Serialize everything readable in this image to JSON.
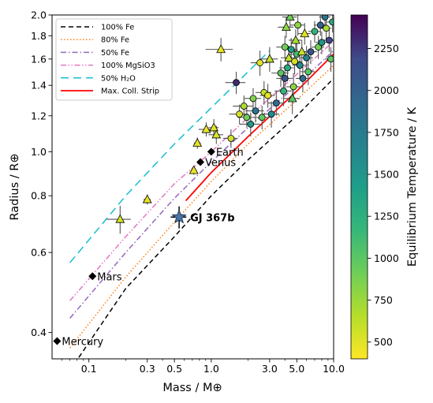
{
  "chart_data": {
    "type": "scatter",
    "xlabel": "Mass / M⊕",
    "ylabel": "Radius / R⊕",
    "xscale": "log",
    "yscale": "log",
    "xlim": [
      0.05,
      10.0
    ],
    "ylim": [
      0.35,
      2.0
    ],
    "x_ticks": [
      0.1,
      0.3,
      0.5,
      1.0,
      3.0,
      5.0,
      10.0
    ],
    "x_tick_labels": [
      "0.1",
      "0.3",
      "0.5",
      "1.0",
      "3.0",
      "5.0",
      "10.0"
    ],
    "y_ticks": [
      0.4,
      0.6,
      0.8,
      1.0,
      1.2,
      1.4,
      1.6,
      1.8,
      2.0
    ],
    "y_tick_labels": [
      "0.4",
      "0.6",
      "0.8",
      "1.0",
      "1.2",
      "1.4",
      "1.6",
      "1.8",
      "2.0"
    ],
    "grid": false,
    "legend_position": "top-left",
    "colorbar": {
      "label": "Equilibrium Temperature / K",
      "min": 400,
      "max": 2450,
      "ticks": [
        500,
        750,
        1000,
        1250,
        1500,
        1750,
        2000,
        2250
      ],
      "tick_labels": [
        "500",
        "750",
        "1000",
        "1250",
        "1500",
        "1750",
        "2000",
        "2250"
      ],
      "colormap": "viridis-reversed"
    },
    "series": [
      {
        "name": "100% Fe",
        "style": "dashed",
        "color": "#000000",
        "x": [
          0.07,
          0.2,
          0.5,
          1.0,
          2.0,
          5.0,
          10.0
        ],
        "y": [
          0.33,
          0.5,
          0.65,
          0.8,
          0.96,
          1.2,
          1.45
        ]
      },
      {
        "name": "80% Fe",
        "style": "dotted",
        "color": "#ff7f0e",
        "x": [
          0.07,
          0.2,
          0.5,
          1.0,
          2.0,
          5.0,
          10.0
        ],
        "y": [
          0.37,
          0.53,
          0.7,
          0.86,
          1.04,
          1.3,
          1.55
        ]
      },
      {
        "name": "50% Fe",
        "style": "dashdot",
        "color": "#9467bd",
        "x": [
          0.07,
          0.2,
          0.5,
          1.0,
          2.0,
          5.0,
          10.0
        ],
        "y": [
          0.43,
          0.6,
          0.79,
          0.95,
          1.13,
          1.4,
          1.67
        ]
      },
      {
        "name": "100% MgSiO3",
        "style": "dashdotdot",
        "color": "#e377c2",
        "x": [
          0.07,
          0.2,
          0.5,
          1.0,
          2.0,
          5.0,
          10.0
        ],
        "y": [
          0.47,
          0.65,
          0.85,
          1.0,
          1.19,
          1.48,
          1.75
        ]
      },
      {
        "name": "50% H₂O",
        "style": "longdash",
        "color": "#17becf",
        "x": [
          0.07,
          0.2,
          0.5,
          1.0,
          2.0,
          3.0
        ],
        "y": [
          0.57,
          0.8,
          1.04,
          1.25,
          1.5,
          1.67
        ]
      },
      {
        "name": "Max. Coll. Strip",
        "style": "solid",
        "color": "#ff0000",
        "x": [
          0.62,
          1.0,
          2.0,
          5.0,
          10.0
        ],
        "y": [
          0.78,
          0.9,
          1.08,
          1.36,
          1.64
        ]
      }
    ],
    "scatter_points": [
      {
        "x": 0.18,
        "y": 0.71,
        "xerr": 0.04,
        "yerr": 0.05,
        "teq": 550,
        "marker": "triangle"
      },
      {
        "x": 0.3,
        "y": 0.785,
        "xerr": 0.02,
        "yerr": 0.02,
        "teq": 480,
        "marker": "triangle"
      },
      {
        "x": 0.72,
        "y": 0.91,
        "xerr": 0.04,
        "yerr": 0.02,
        "teq": 480,
        "marker": "triangle"
      },
      {
        "x": 0.77,
        "y": 1.045,
        "xerr": 0.05,
        "yerr": 0.03,
        "teq": 500,
        "marker": "triangle"
      },
      {
        "x": 0.91,
        "y": 1.12,
        "xerr": 0.12,
        "yerr": 0.04,
        "teq": 470,
        "marker": "triangle"
      },
      {
        "x": 1.05,
        "y": 1.13,
        "xerr": 0.1,
        "yerr": 0.05,
        "teq": 500,
        "marker": "triangle"
      },
      {
        "x": 1.1,
        "y": 1.09,
        "xerr": 0.15,
        "yerr": 0.05,
        "teq": 520,
        "marker": "triangle"
      },
      {
        "x": 1.2,
        "y": 1.68,
        "xerr": 0.3,
        "yerr": 0.1,
        "teq": 480,
        "marker": "triangle"
      },
      {
        "x": 1.45,
        "y": 1.07,
        "xerr": 0.2,
        "yerr": 0.05,
        "teq": 560,
        "marker": "circle"
      },
      {
        "x": 1.6,
        "y": 1.42,
        "xerr": 0.3,
        "yerr": 0.08,
        "teq": 2300,
        "marker": "circle"
      },
      {
        "x": 1.7,
        "y": 1.21,
        "xerr": 0.3,
        "yerr": 0.06,
        "teq": 550,
        "marker": "circle"
      },
      {
        "x": 1.85,
        "y": 1.26,
        "xerr": 0.35,
        "yerr": 0.07,
        "teq": 700,
        "marker": "circle"
      },
      {
        "x": 1.95,
        "y": 1.19,
        "xerr": 0.3,
        "yerr": 0.06,
        "teq": 900,
        "marker": "circle"
      },
      {
        "x": 2.1,
        "y": 1.15,
        "xerr": 0.4,
        "yerr": 0.07,
        "teq": 1500,
        "marker": "circle"
      },
      {
        "x": 2.2,
        "y": 1.31,
        "xerr": 0.35,
        "yerr": 0.07,
        "teq": 850,
        "marker": "circle"
      },
      {
        "x": 2.3,
        "y": 1.23,
        "xerr": 0.4,
        "yerr": 0.07,
        "teq": 1800,
        "marker": "circle"
      },
      {
        "x": 2.5,
        "y": 1.57,
        "xerr": 0.4,
        "yerr": 0.1,
        "teq": 500,
        "marker": "circle"
      },
      {
        "x": 2.6,
        "y": 1.19,
        "xerr": 0.4,
        "yerr": 0.07,
        "teq": 950,
        "marker": "circle"
      },
      {
        "x": 2.7,
        "y": 1.35,
        "xerr": 0.4,
        "yerr": 0.08,
        "teq": 600,
        "marker": "circle"
      },
      {
        "x": 2.9,
        "y": 1.33,
        "xerr": 0.4,
        "yerr": 0.08,
        "teq": 480,
        "marker": "circle"
      },
      {
        "x": 3.0,
        "y": 1.6,
        "xerr": 0.5,
        "yerr": 0.1,
        "teq": 620,
        "marker": "triangle"
      },
      {
        "x": 3.1,
        "y": 1.21,
        "xerr": 0.5,
        "yerr": 0.08,
        "teq": 1600,
        "marker": "circle"
      },
      {
        "x": 3.4,
        "y": 1.28,
        "xerr": 0.5,
        "yerr": 0.08,
        "teq": 1900,
        "marker": "circle"
      },
      {
        "x": 3.7,
        "y": 1.49,
        "xerr": 0.6,
        "yerr": 0.1,
        "teq": 1000,
        "marker": "circle"
      },
      {
        "x": 3.9,
        "y": 1.36,
        "xerr": 0.6,
        "yerr": 0.1,
        "teq": 1200,
        "marker": "circle"
      },
      {
        "x": 4.0,
        "y": 1.45,
        "xerr": 0.6,
        "yerr": 0.1,
        "teq": 2100,
        "marker": "circle"
      },
      {
        "x": 4.0,
        "y": 1.7,
        "xerr": 0.6,
        "yerr": 0.1,
        "teq": 900,
        "marker": "circle"
      },
      {
        "x": 4.1,
        "y": 1.88,
        "xerr": 0.6,
        "yerr": 0.1,
        "teq": 800,
        "marker": "triangle"
      },
      {
        "x": 4.2,
        "y": 1.53,
        "xerr": 0.6,
        "yerr": 0.1,
        "teq": 1300,
        "marker": "circle"
      },
      {
        "x": 4.3,
        "y": 1.61,
        "xerr": 0.6,
        "yerr": 0.1,
        "teq": 600,
        "marker": "triangle"
      },
      {
        "x": 4.4,
        "y": 1.98,
        "xerr": 0.6,
        "yerr": 0.1,
        "teq": 900,
        "marker": "triangle"
      },
      {
        "x": 4.5,
        "y": 1.68,
        "xerr": 0.6,
        "yerr": 0.1,
        "teq": 1400,
        "marker": "circle"
      },
      {
        "x": 4.6,
        "y": 1.31,
        "xerr": 0.7,
        "yerr": 0.1,
        "teq": 1000,
        "marker": "triangle"
      },
      {
        "x": 4.7,
        "y": 1.39,
        "xerr": 0.6,
        "yerr": 0.1,
        "teq": 800,
        "marker": "circle"
      },
      {
        "x": 4.8,
        "y": 1.58,
        "xerr": 0.6,
        "yerr": 0.1,
        "teq": 550,
        "marker": "circle"
      },
      {
        "x": 4.9,
        "y": 1.76,
        "xerr": 0.6,
        "yerr": 0.1,
        "teq": 700,
        "marker": "triangle"
      },
      {
        "x": 5.0,
        "y": 1.64,
        "xerr": 0.7,
        "yerr": 0.1,
        "teq": 1100,
        "marker": "circle"
      },
      {
        "x": 5.1,
        "y": 1.9,
        "xerr": 0.7,
        "yerr": 0.1,
        "teq": 800,
        "marker": "circle"
      },
      {
        "x": 5.3,
        "y": 1.55,
        "xerr": 0.7,
        "yerr": 0.1,
        "teq": 1600,
        "marker": "circle"
      },
      {
        "x": 5.5,
        "y": 1.66,
        "xerr": 0.7,
        "yerr": 0.1,
        "teq": 600,
        "marker": "triangle"
      },
      {
        "x": 5.6,
        "y": 1.45,
        "xerr": 0.7,
        "yerr": 0.1,
        "teq": 1900,
        "marker": "circle"
      },
      {
        "x": 5.8,
        "y": 1.82,
        "xerr": 0.7,
        "yerr": 0.1,
        "teq": 500,
        "marker": "triangle"
      },
      {
        "x": 6.0,
        "y": 1.61,
        "xerr": 0.8,
        "yerr": 0.1,
        "teq": 1700,
        "marker": "circle"
      },
      {
        "x": 6.2,
        "y": 1.5,
        "xerr": 0.8,
        "yerr": 0.1,
        "teq": 1000,
        "marker": "circle"
      },
      {
        "x": 6.5,
        "y": 1.66,
        "xerr": 0.8,
        "yerr": 0.1,
        "teq": 2100,
        "marker": "circle"
      },
      {
        "x": 7.0,
        "y": 1.84,
        "xerr": 0.8,
        "yerr": 0.1,
        "teq": 1200,
        "marker": "circle"
      },
      {
        "x": 7.5,
        "y": 1.7,
        "xerr": 0.9,
        "yerr": 0.1,
        "teq": 900,
        "marker": "circle"
      },
      {
        "x": 7.8,
        "y": 1.9,
        "xerr": 0.9,
        "yerr": 0.1,
        "teq": 2000,
        "marker": "circle"
      },
      {
        "x": 8.0,
        "y": 1.74,
        "xerr": 0.9,
        "yerr": 0.1,
        "teq": 1500,
        "marker": "circle"
      },
      {
        "x": 8.5,
        "y": 1.98,
        "xerr": 0.9,
        "yerr": 0.1,
        "teq": 1800,
        "marker": "circle"
      },
      {
        "x": 8.7,
        "y": 1.87,
        "xerr": 0.9,
        "yerr": 0.1,
        "teq": 700,
        "marker": "circle"
      },
      {
        "x": 9.2,
        "y": 1.76,
        "xerr": 1.0,
        "yerr": 0.1,
        "teq": 2200,
        "marker": "circle"
      },
      {
        "x": 9.5,
        "y": 1.6,
        "xerr": 1.0,
        "yerr": 0.1,
        "teq": 1000,
        "marker": "circle"
      },
      {
        "x": 9.8,
        "y": 1.93,
        "xerr": 1.0,
        "yerr": 0.1,
        "teq": 1300,
        "marker": "circle"
      }
    ],
    "solar_system": [
      {
        "name": "Mercury",
        "x": 0.055,
        "y": 0.383
      },
      {
        "name": "Mars",
        "x": 0.107,
        "y": 0.532
      },
      {
        "name": "Venus",
        "x": 0.815,
        "y": 0.949
      },
      {
        "name": "Earth",
        "x": 1.0,
        "y": 1.0
      }
    ],
    "highlight": {
      "name": "GJ 367b",
      "x": 0.546,
      "y": 0.718,
      "xerr": 0.08,
      "yerr": 0.04
    }
  }
}
